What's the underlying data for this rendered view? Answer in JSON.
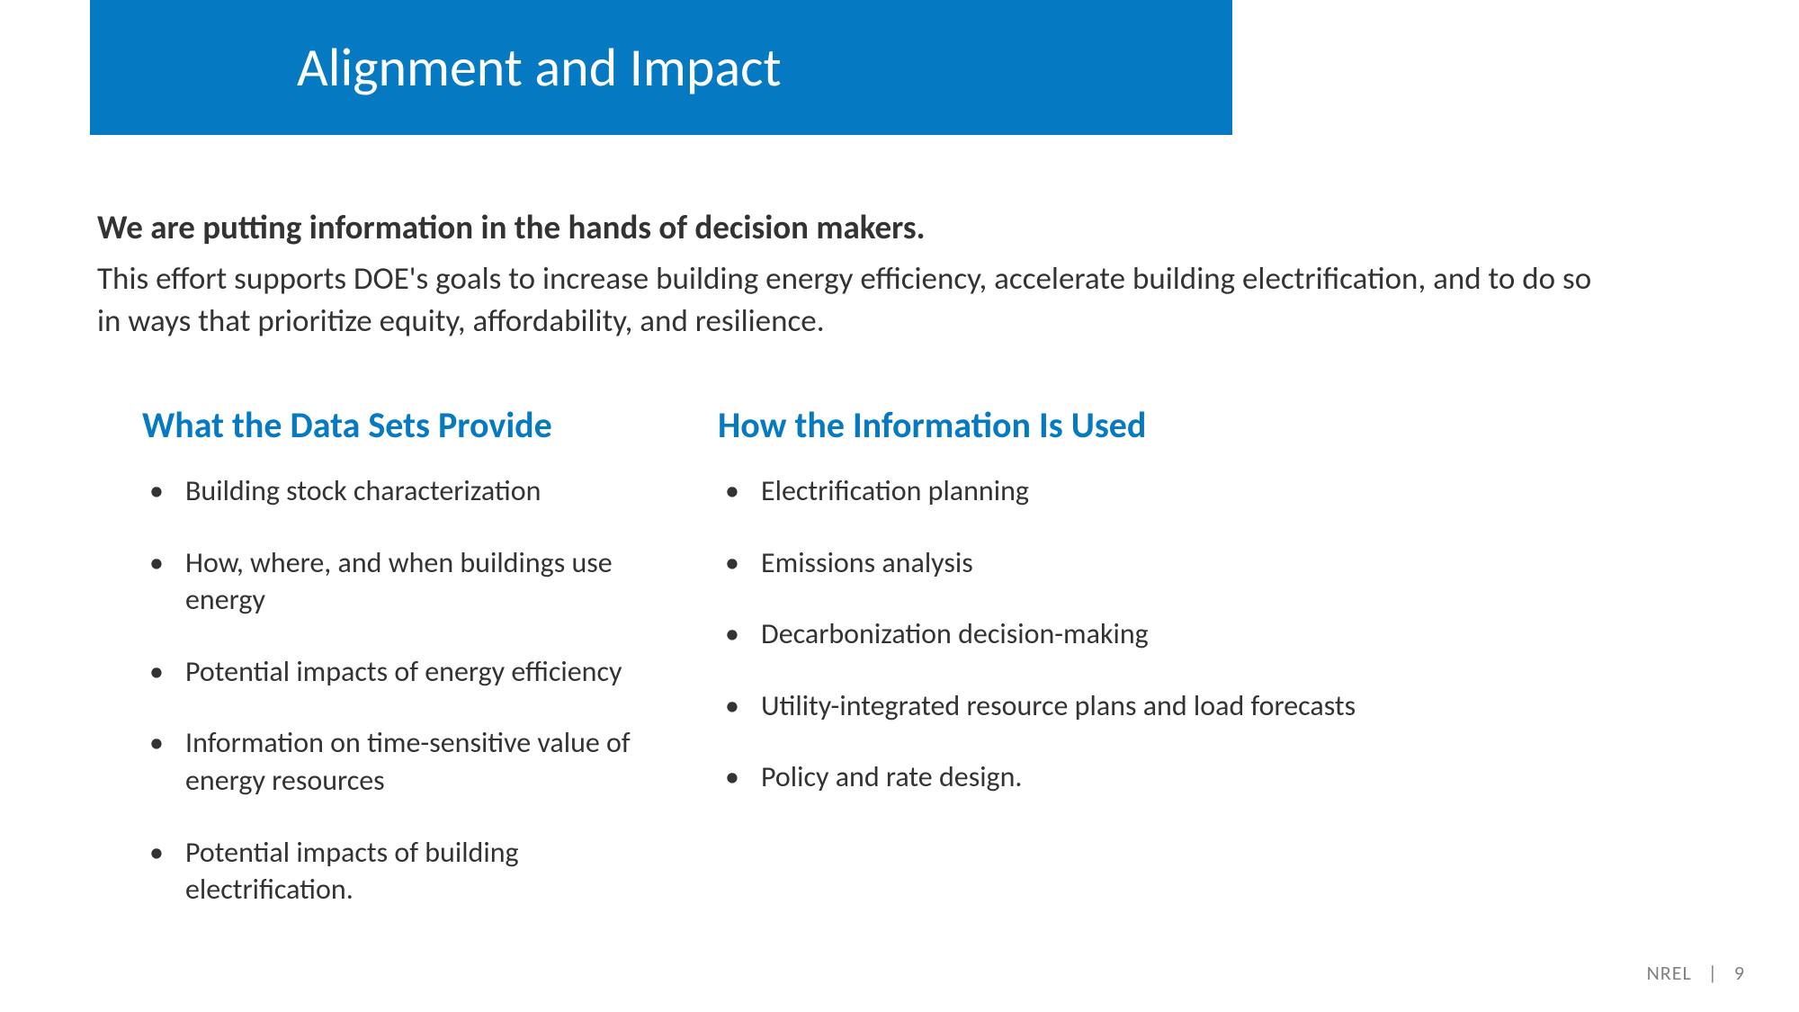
{
  "title": "Alignment and Impact",
  "intro": {
    "heading": "We are putting information in the hands of decision makers.",
    "body": "This effort supports DOE's goals to increase building energy efficiency, accelerate building electrification, and to do so in ways that prioritize equity, affordability, and resilience."
  },
  "columns": {
    "left": {
      "heading": "What the Data Sets Provide",
      "items": [
        "Building stock characterization",
        "How, where, and when buildings use energy",
        "Potential impacts of energy efficiency",
        "Information on time-sensitive value of energy resources",
        "Potential impacts of building electrification."
      ]
    },
    "right": {
      "heading": "How the Information Is Used",
      "items": [
        "Electrification planning",
        "Emissions analysis",
        "Decarbonization decision-making",
        "Utility-integrated resource plans and load forecasts",
        "Policy and rate design."
      ]
    }
  },
  "footer": {
    "org": "NREL",
    "separator": "|",
    "page": "9"
  },
  "colors": {
    "title_bg": "#0579c1",
    "title_text": "#ffffff",
    "body_text": "#333333",
    "heading_blue": "#0579c1",
    "footer_text": "#808080",
    "background": "#ffffff"
  }
}
